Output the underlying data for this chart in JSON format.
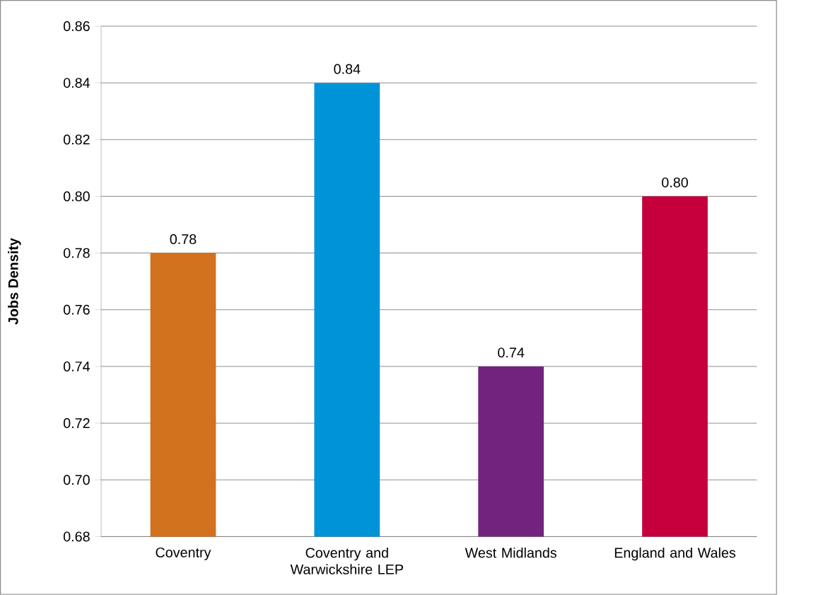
{
  "chart_data": {
    "type": "bar",
    "ylabel": "Jobs Density",
    "categories": [
      "Coventry",
      "Coventry and Warwickshire LEP",
      "West Midlands",
      "England and Wales"
    ],
    "values": [
      0.78,
      0.84,
      0.74,
      0.8
    ],
    "colors": [
      "#d2711e",
      "#0093d8",
      "#72237e",
      "#c5003c"
    ],
    "value_labels": [
      "0.78",
      "0.84",
      "0.74",
      "0.80"
    ],
    "ylim": [
      0.68,
      0.86
    ],
    "yticks": [
      0.68,
      {
        "value": 0.7,
        "label": "0.70"
      },
      0.72,
      0.74,
      0.76,
      0.78,
      {
        "value": 0.8,
        "label": "0.80"
      },
      0.82,
      0.84,
      0.86
    ],
    "grid": "y"
  }
}
